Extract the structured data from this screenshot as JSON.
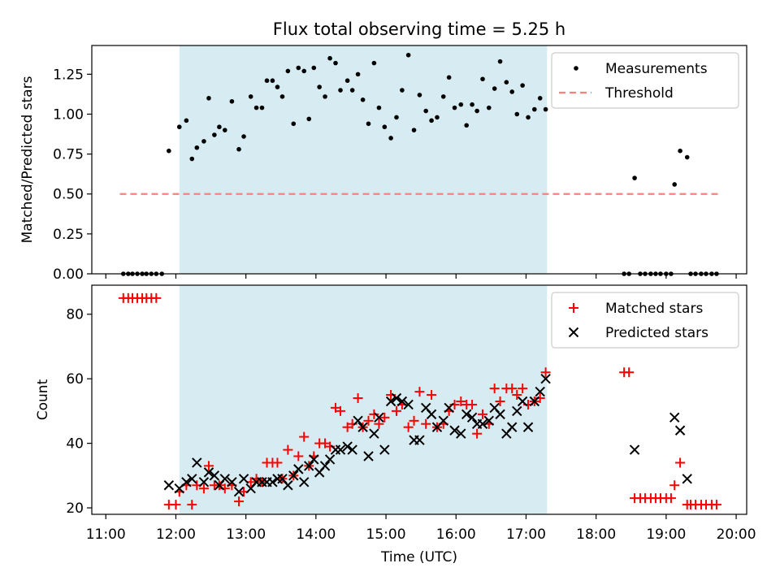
{
  "title": "Flux total observing time = 5.25 h",
  "colors": {
    "span": "#add8e6",
    "measurement": "#000000",
    "threshold": "#ff7f7f",
    "matched": "#ff0000",
    "predicted": "#000000"
  },
  "chart_data": [
    {
      "type": "scatter",
      "panel": "top",
      "ylabel": "Matched/Predicted stars",
      "xlim": [
        10.8,
        20.15
      ],
      "ylim": [
        0,
        1.43
      ],
      "yticks": [
        0,
        0.25,
        0.5,
        0.75,
        1.0,
        1.25
      ],
      "ytick_labels": [
        "0.00",
        "0.25",
        "0.50",
        "0.75",
        "1.00",
        "1.25"
      ],
      "shaded_span": [
        12.05,
        17.3
      ],
      "legend": {
        "placement": "top-right",
        "entries": [
          "Measurements",
          "Threshold"
        ]
      },
      "threshold": {
        "name": "Threshold",
        "y": 0.5,
        "x": [
          11.2,
          19.75
        ]
      },
      "series": [
        {
          "name": "Measurements",
          "marker": "dot",
          "x": [
            11.25,
            11.32,
            11.38,
            11.45,
            11.52,
            11.58,
            11.65,
            11.72,
            11.8,
            11.9,
            12.05,
            12.15,
            12.23,
            12.3,
            12.4,
            12.47,
            12.55,
            12.62,
            12.7,
            12.8,
            12.9,
            12.97,
            13.07,
            13.15,
            13.23,
            13.3,
            13.38,
            13.45,
            13.52,
            13.6,
            13.68,
            13.75,
            13.83,
            13.9,
            13.97,
            14.05,
            14.13,
            14.2,
            14.28,
            14.35,
            14.45,
            14.52,
            14.6,
            14.67,
            14.75,
            14.83,
            14.9,
            14.98,
            15.07,
            15.15,
            15.23,
            15.32,
            15.4,
            15.48,
            15.57,
            15.65,
            15.73,
            15.82,
            15.9,
            15.98,
            16.07,
            16.15,
            16.23,
            16.3,
            16.38,
            16.47,
            16.55,
            16.63,
            16.72,
            16.8,
            16.87,
            16.95,
            17.03,
            17.12,
            17.2,
            17.28,
            18.4,
            18.47,
            18.55,
            18.63,
            18.7,
            18.78,
            18.85,
            18.92,
            19.0,
            19.07,
            19.12,
            19.2,
            19.3,
            19.35,
            19.42,
            19.5,
            19.57,
            19.65,
            19.72
          ],
          "y": [
            0,
            0,
            0,
            0,
            0,
            0,
            0,
            0,
            0,
            0.77,
            0.92,
            0.96,
            0.72,
            0.79,
            0.83,
            1.1,
            0.87,
            0.92,
            0.9,
            1.08,
            0.78,
            0.86,
            1.11,
            1.04,
            1.04,
            1.21,
            1.21,
            1.17,
            1.11,
            1.27,
            0.94,
            1.29,
            1.27,
            0.97,
            1.29,
            1.17,
            1.11,
            1.35,
            1.32,
            1.15,
            1.21,
            1.15,
            1.25,
            1.09,
            0.94,
            1.32,
            1.04,
            0.92,
            0.85,
            0.98,
            1.15,
            1.37,
            0.9,
            1.12,
            1.02,
            0.96,
            0.98,
            1.11,
            1.23,
            1.04,
            1.06,
            0.93,
            1.06,
            1.02,
            1.22,
            1.04,
            1.16,
            1.33,
            1.2,
            1.14,
            1.0,
            1.18,
            0.98,
            1.03,
            1.1,
            1.03,
            0,
            0,
            0.6,
            0,
            0,
            0,
            0,
            0,
            0,
            0,
            0.56,
            0.77,
            0.73,
            0,
            0,
            0,
            0,
            0,
            0
          ]
        }
      ]
    },
    {
      "type": "scatter",
      "panel": "bottom",
      "xlabel": "Time (UTC)",
      "ylabel": "Count",
      "xlim": [
        10.8,
        20.15
      ],
      "ylim": [
        18,
        89
      ],
      "xticks": [
        11,
        12,
        13,
        14,
        15,
        16,
        17,
        18,
        19,
        20
      ],
      "xtick_labels": [
        "11:00",
        "12:00",
        "13:00",
        "14:00",
        "15:00",
        "16:00",
        "17:00",
        "18:00",
        "19:00",
        "20:00"
      ],
      "yticks": [
        20,
        40,
        60,
        80
      ],
      "ytick_labels": [
        "20",
        "40",
        "60",
        "80"
      ],
      "shaded_span": [
        12.05,
        17.3
      ],
      "legend": {
        "placement": "top-right",
        "entries": [
          "Matched stars",
          "Predicted stars"
        ]
      },
      "series": [
        {
          "name": "Matched stars",
          "marker": "plus",
          "x": [
            11.25,
            11.32,
            11.38,
            11.45,
            11.52,
            11.58,
            11.65,
            11.72,
            11.9,
            12.0,
            12.05,
            12.15,
            12.23,
            12.3,
            12.4,
            12.47,
            12.55,
            12.62,
            12.7,
            12.8,
            12.9,
            12.97,
            13.07,
            13.15,
            13.23,
            13.3,
            13.38,
            13.45,
            13.52,
            13.6,
            13.68,
            13.75,
            13.83,
            13.9,
            13.97,
            14.05,
            14.13,
            14.2,
            14.28,
            14.35,
            14.45,
            14.52,
            14.6,
            14.67,
            14.75,
            14.83,
            14.9,
            14.98,
            15.07,
            15.15,
            15.23,
            15.32,
            15.4,
            15.48,
            15.57,
            15.65,
            15.73,
            15.82,
            15.9,
            15.98,
            16.07,
            16.15,
            16.23,
            16.3,
            16.38,
            16.47,
            16.55,
            16.63,
            16.72,
            16.8,
            16.87,
            16.95,
            17.03,
            17.12,
            17.2,
            17.28,
            18.4,
            18.47,
            18.55,
            18.63,
            18.7,
            18.78,
            18.85,
            18.92,
            19.0,
            19.07,
            19.12,
            19.2,
            19.3,
            19.35,
            19.42,
            19.5,
            19.57,
            19.65,
            19.72
          ],
          "y": [
            85,
            85,
            85,
            85,
            85,
            85,
            85,
            85,
            21,
            21,
            25,
            27,
            21,
            27,
            26,
            33,
            27,
            27,
            26,
            27,
            22,
            25,
            28,
            29,
            28,
            34,
            34,
            34,
            29,
            38,
            30,
            36,
            42,
            33,
            36,
            40,
            40,
            39,
            51,
            50,
            45,
            46,
            54,
            45,
            47,
            49,
            46,
            48,
            55,
            50,
            52,
            45,
            47,
            56,
            46,
            55,
            45,
            46,
            50,
            52,
            53,
            52,
            52,
            43,
            49,
            46,
            57,
            53,
            57,
            57,
            55,
            57,
            52,
            53,
            54,
            62,
            62,
            62,
            23,
            23,
            23,
            23,
            23,
            23,
            23,
            23,
            27,
            34,
            21,
            21,
            21,
            21,
            21,
            21,
            21
          ],
          "note_x_shared": true
        },
        {
          "name": "Predicted stars",
          "marker": "x",
          "x": [
            11.9,
            12.05,
            12.15,
            12.23,
            12.3,
            12.4,
            12.47,
            12.55,
            12.62,
            12.7,
            12.8,
            12.9,
            12.97,
            13.07,
            13.15,
            13.23,
            13.3,
            13.38,
            13.45,
            13.52,
            13.6,
            13.68,
            13.75,
            13.83,
            13.9,
            13.97,
            14.05,
            14.13,
            14.2,
            14.28,
            14.35,
            14.45,
            14.52,
            14.6,
            14.67,
            14.75,
            14.83,
            14.9,
            14.98,
            15.07,
            15.15,
            15.23,
            15.32,
            15.4,
            15.48,
            15.57,
            15.65,
            15.73,
            15.82,
            15.9,
            15.98,
            16.07,
            16.15,
            16.23,
            16.3,
            16.38,
            16.47,
            16.55,
            16.63,
            16.72,
            16.8,
            16.87,
            16.95,
            17.03,
            17.12,
            17.2,
            17.28,
            18.55,
            19.12,
            19.2,
            19.3
          ],
          "y": [
            27,
            26,
            28,
            29,
            34,
            28,
            31,
            30,
            27,
            29,
            28,
            25,
            29,
            26,
            28,
            28,
            28,
            28,
            29,
            29,
            27,
            30,
            32,
            28,
            33,
            35,
            31,
            33,
            35,
            38,
            38,
            39,
            38,
            47,
            45,
            36,
            43,
            48,
            38,
            53,
            54,
            53,
            52,
            41,
            41,
            51,
            49,
            45,
            47,
            51,
            44,
            43,
            49,
            48,
            46,
            46,
            47,
            51,
            49,
            43,
            45,
            50,
            53,
            45,
            53,
            56,
            60,
            38,
            48,
            44,
            29
          ]
        }
      ]
    }
  ]
}
